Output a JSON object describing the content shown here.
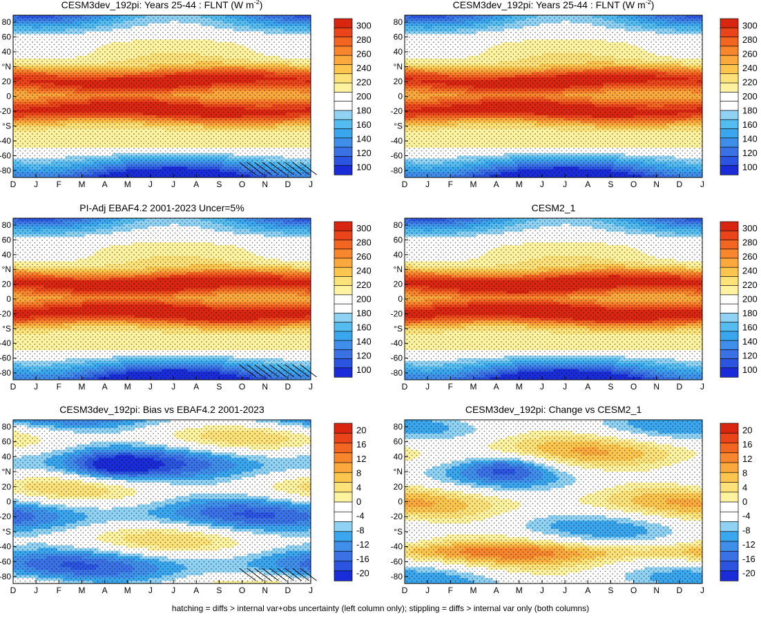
{
  "figure": {
    "footnote": "hatching = diffs > internal var+obs uncertainty (left column only); stippling = diffs > internal var only (both columns)"
  },
  "chart_data": [
    {
      "type": "heatmap",
      "kind": "abs",
      "title": "CESM3dev_192pi: Years 25-44 : FLNT (W m",
      "title_sup": "-2",
      "title_end": ")",
      "x_ticks": [
        "D",
        "J",
        "F",
        "M",
        "A",
        "M",
        "J",
        "J",
        "A",
        "S",
        "O",
        "N",
        "D",
        "J"
      ],
      "y_ticks": [
        "80",
        "60",
        "40",
        "°N",
        "20",
        "0",
        "-20",
        "°S",
        "-40",
        "-60",
        "-80"
      ],
      "colorbar": [
        "300",
        "280",
        "260",
        "240",
        "220",
        "200",
        "180",
        "160",
        "140",
        "120",
        "100"
      ],
      "variant": 0,
      "hatching": true
    },
    {
      "type": "heatmap",
      "kind": "abs",
      "title": "CESM3dev_192pi: Years 25-44 : FLNT (W m",
      "title_sup": "-2",
      "title_end": ")",
      "x_ticks": [
        "D",
        "J",
        "F",
        "M",
        "A",
        "M",
        "J",
        "J",
        "A",
        "S",
        "O",
        "N",
        "D",
        "J"
      ],
      "y_ticks": [
        "80",
        "60",
        "40",
        "°N",
        "20",
        "0",
        "-20",
        "°S",
        "-40",
        "-60",
        "-80"
      ],
      "colorbar": [
        "300",
        "280",
        "260",
        "240",
        "220",
        "200",
        "180",
        "160",
        "140",
        "120",
        "100"
      ],
      "variant": 1,
      "hatching": false
    },
    {
      "type": "heatmap",
      "kind": "abs",
      "title": "PI-Adj EBAF4.2 2001-2023 Uncer=5%",
      "title_sup": "",
      "title_end": "",
      "x_ticks": [
        "D",
        "J",
        "F",
        "M",
        "A",
        "M",
        "J",
        "J",
        "A",
        "S",
        "O",
        "N",
        "D",
        "J"
      ],
      "y_ticks": [
        "80",
        "60",
        "40",
        "°N",
        "20",
        "0",
        "-20",
        "°S",
        "-40",
        "-60",
        "-80"
      ],
      "colorbar": [
        "300",
        "280",
        "260",
        "240",
        "220",
        "200",
        "180",
        "160",
        "140",
        "120",
        "100"
      ],
      "variant": 2,
      "hatching": true
    },
    {
      "type": "heatmap",
      "kind": "abs",
      "title": "CESM2_1",
      "title_sup": "",
      "title_end": "",
      "x_ticks": [
        "D",
        "J",
        "F",
        "M",
        "A",
        "M",
        "J",
        "J",
        "A",
        "S",
        "O",
        "N",
        "D",
        "J"
      ],
      "y_ticks": [
        "80",
        "60",
        "40",
        "°N",
        "20",
        "0",
        "-20",
        "°S",
        "-40",
        "-60",
        "-80"
      ],
      "colorbar": [
        "300",
        "280",
        "260",
        "240",
        "220",
        "200",
        "180",
        "160",
        "140",
        "120",
        "100"
      ],
      "variant": 3,
      "hatching": false
    },
    {
      "type": "heatmap",
      "kind": "diff",
      "title": "CESM3dev_192pi: Bias vs EBAF4.2 2001-2023",
      "title_sup": "",
      "title_end": "",
      "x_ticks": [
        "D",
        "J",
        "F",
        "M",
        "A",
        "M",
        "J",
        "J",
        "A",
        "S",
        "O",
        "N",
        "D",
        "J"
      ],
      "y_ticks": [
        "80",
        "60",
        "40",
        "°N",
        "20",
        "0",
        "-20",
        "°S",
        "-40",
        "-60",
        "-80"
      ],
      "colorbar": [
        "20",
        "16",
        "12",
        "8",
        "4",
        "0",
        "-4",
        "-8",
        "-12",
        "-16",
        "-20"
      ],
      "variant": 4,
      "hatching": true
    },
    {
      "type": "heatmap",
      "kind": "diff",
      "title": "CESM3dev_192pi: Change vs CESM2_1",
      "title_sup": "",
      "title_end": "",
      "x_ticks": [
        "D",
        "J",
        "F",
        "M",
        "A",
        "M",
        "J",
        "J",
        "A",
        "S",
        "O",
        "N",
        "D",
        "J"
      ],
      "y_ticks": [
        "80",
        "60",
        "40",
        "°N",
        "20",
        "0",
        "-20",
        "°S",
        "-40",
        "-60",
        "-80"
      ],
      "colorbar": [
        "20",
        "16",
        "12",
        "8",
        "4",
        "0",
        "-4",
        "-8",
        "-12",
        "-16",
        "-20"
      ],
      "variant": 5,
      "hatching": false
    }
  ],
  "colors": {
    "abs": [
      "#1a2cd8",
      "#2b55e0",
      "#3a72e6",
      "#3f8eea",
      "#3aa6ee",
      "#55bcf0",
      "#8fd2f4",
      "#ffffff",
      "#ffffff",
      "#fff3a0",
      "#fde27a",
      "#fcc64e",
      "#fba83c",
      "#f8862d",
      "#f26622",
      "#e9441a",
      "#d82611"
    ],
    "diff": [
      "#1a2cd8",
      "#2b55e0",
      "#3a72e6",
      "#3f8eea",
      "#3aa6ee",
      "#8fd2f4",
      "#ffffff",
      "#ffffff",
      "#fff3a0",
      "#fde27a",
      "#fcc64e",
      "#fba83c",
      "#f8862d",
      "#f26622",
      "#e9441a",
      "#d82611"
    ]
  }
}
